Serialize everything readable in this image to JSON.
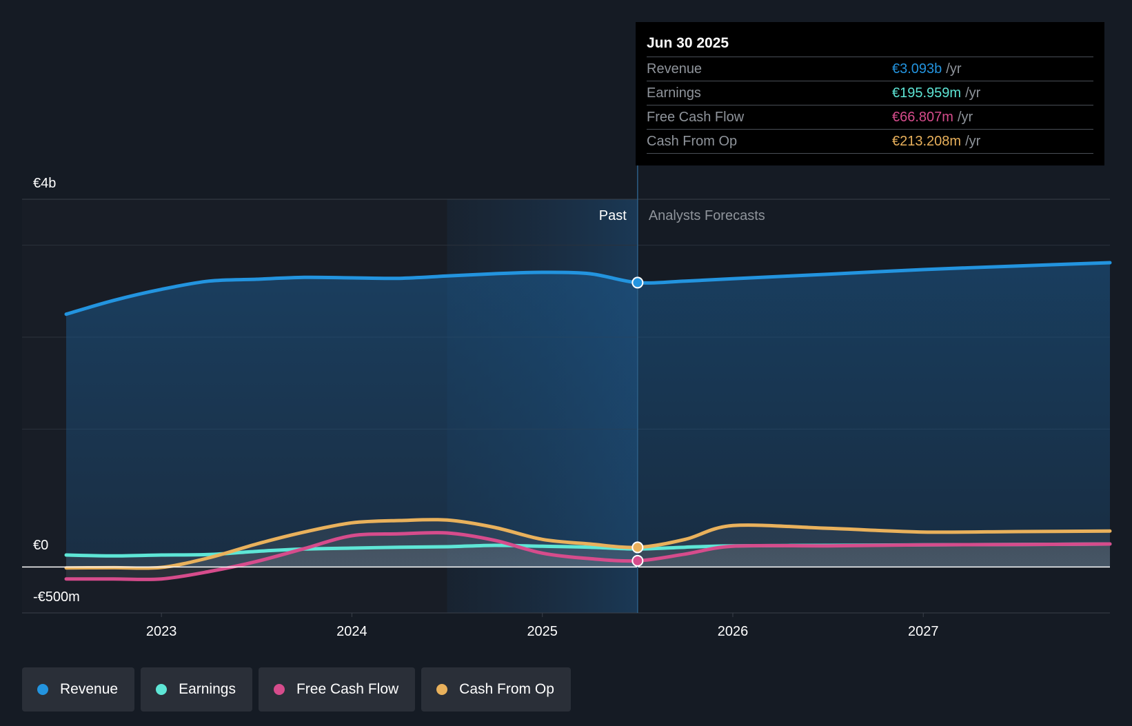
{
  "chart_data": {
    "type": "area",
    "currency": "€",
    "y_tick_labels": [
      "€4b",
      "€0",
      "-€500m"
    ],
    "ylim": [
      -500,
      4000
    ],
    "y_unit": "€m",
    "x_tick_labels": [
      "2023",
      "2024",
      "2025",
      "2026",
      "2027"
    ],
    "x_ticks": [
      2023,
      2024,
      2025,
      2026,
      2027
    ],
    "xlim": [
      2022.5,
      2027.98
    ],
    "highlight_region": [
      2024.5,
      2025.5
    ],
    "divider_x": 2025.5,
    "divider_labels": {
      "past": "Past",
      "forecast": "Analysts Forecasts"
    },
    "series": [
      {
        "name": "Revenue",
        "key": "revenue",
        "color": "#2394df",
        "points": [
          [
            2022.5,
            2750
          ],
          [
            2022.75,
            2900
          ],
          [
            2023.0,
            3020
          ],
          [
            2023.25,
            3110
          ],
          [
            2023.5,
            3130
          ],
          [
            2023.75,
            3150
          ],
          [
            2024.0,
            3145
          ],
          [
            2024.25,
            3140
          ],
          [
            2024.5,
            3165
          ],
          [
            2024.75,
            3190
          ],
          [
            2025.0,
            3205
          ],
          [
            2025.25,
            3190
          ],
          [
            2025.5,
            3093
          ],
          [
            2025.75,
            3110
          ],
          [
            2026.0,
            3135
          ],
          [
            2026.5,
            3185
          ],
          [
            2027.0,
            3235
          ],
          [
            2027.5,
            3275
          ],
          [
            2027.98,
            3310
          ]
        ]
      },
      {
        "name": "Earnings",
        "key": "earnings",
        "color": "#5ee6d6",
        "points": [
          [
            2022.5,
            130
          ],
          [
            2022.75,
            120
          ],
          [
            2023.0,
            130
          ],
          [
            2023.25,
            135
          ],
          [
            2023.5,
            170
          ],
          [
            2023.75,
            195
          ],
          [
            2024.0,
            205
          ],
          [
            2024.25,
            215
          ],
          [
            2024.5,
            220
          ],
          [
            2024.75,
            235
          ],
          [
            2025.0,
            225
          ],
          [
            2025.25,
            215
          ],
          [
            2025.5,
            196
          ],
          [
            2025.75,
            215
          ],
          [
            2026.0,
            230
          ],
          [
            2026.5,
            235
          ],
          [
            2027.0,
            240
          ],
          [
            2027.5,
            245
          ],
          [
            2027.98,
            250
          ]
        ]
      },
      {
        "name": "Free Cash Flow",
        "key": "fcf",
        "color": "#d64c8c",
        "points": [
          [
            2022.5,
            -130
          ],
          [
            2022.75,
            -130
          ],
          [
            2023.0,
            -130
          ],
          [
            2023.25,
            -50
          ],
          [
            2023.5,
            60
          ],
          [
            2023.75,
            200
          ],
          [
            2024.0,
            340
          ],
          [
            2024.25,
            360
          ],
          [
            2024.5,
            370
          ],
          [
            2024.75,
            290
          ],
          [
            2025.0,
            150
          ],
          [
            2025.25,
            90
          ],
          [
            2025.5,
            67
          ],
          [
            2025.75,
            140
          ],
          [
            2026.0,
            225
          ],
          [
            2026.5,
            230
          ],
          [
            2027.0,
            240
          ],
          [
            2027.5,
            245
          ],
          [
            2027.98,
            250
          ]
        ]
      },
      {
        "name": "Cash From Op",
        "key": "cfo",
        "color": "#e9b15c",
        "points": [
          [
            2022.5,
            -10
          ],
          [
            2022.75,
            -8
          ],
          [
            2023.0,
            -5
          ],
          [
            2023.25,
            100
          ],
          [
            2023.5,
            250
          ],
          [
            2023.75,
            380
          ],
          [
            2024.0,
            480
          ],
          [
            2024.25,
            505
          ],
          [
            2024.5,
            510
          ],
          [
            2024.75,
            430
          ],
          [
            2025.0,
            300
          ],
          [
            2025.25,
            250
          ],
          [
            2025.5,
            213
          ],
          [
            2025.75,
            300
          ],
          [
            2026.0,
            450
          ],
          [
            2026.5,
            420
          ],
          [
            2027.0,
            380
          ],
          [
            2027.5,
            385
          ],
          [
            2027.98,
            390
          ]
        ]
      }
    ]
  },
  "tooltip": {
    "date": "Jun 30 2025",
    "rows": [
      {
        "label": "Revenue",
        "value": "€3.093b",
        "unit": "/yr",
        "color": "#2394df"
      },
      {
        "label": "Earnings",
        "value": "€195.959m",
        "unit": "/yr",
        "color": "#5ee6d6"
      },
      {
        "label": "Free Cash Flow",
        "value": "€66.807m",
        "unit": "/yr",
        "color": "#d64c8c"
      },
      {
        "label": "Cash From Op",
        "value": "€213.208m",
        "unit": "/yr",
        "color": "#e9b15c"
      }
    ]
  },
  "legend": [
    {
      "label": "Revenue",
      "color": "#2394df"
    },
    {
      "label": "Earnings",
      "color": "#5ee6d6"
    },
    {
      "label": "Free Cash Flow",
      "color": "#d64c8c"
    },
    {
      "label": "Cash From Op",
      "color": "#e9b15c"
    }
  ]
}
